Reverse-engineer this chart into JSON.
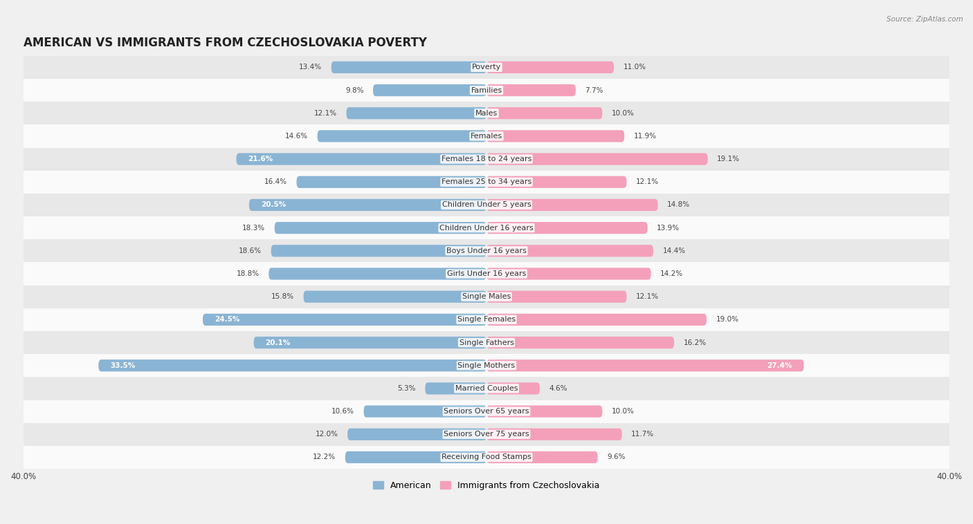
{
  "title": "AMERICAN VS IMMIGRANTS FROM CZECHOSLOVAKIA POVERTY",
  "source": "Source: ZipAtlas.com",
  "categories": [
    "Poverty",
    "Families",
    "Males",
    "Females",
    "Females 18 to 24 years",
    "Females 25 to 34 years",
    "Children Under 5 years",
    "Children Under 16 years",
    "Boys Under 16 years",
    "Girls Under 16 years",
    "Single Males",
    "Single Females",
    "Single Fathers",
    "Single Mothers",
    "Married Couples",
    "Seniors Over 65 years",
    "Seniors Over 75 years",
    "Receiving Food Stamps"
  ],
  "american_values": [
    13.4,
    9.8,
    12.1,
    14.6,
    21.6,
    16.4,
    20.5,
    18.3,
    18.6,
    18.8,
    15.8,
    24.5,
    20.1,
    33.5,
    5.3,
    10.6,
    12.0,
    12.2
  ],
  "immigrant_values": [
    11.0,
    7.7,
    10.0,
    11.9,
    19.1,
    12.1,
    14.8,
    13.9,
    14.4,
    14.2,
    12.1,
    19.0,
    16.2,
    27.4,
    4.6,
    10.0,
    11.7,
    9.6
  ],
  "american_color": "#8AB4D4",
  "immigrant_color": "#F4A0BA",
  "bar_height": 0.52,
  "xlim": 40.0,
  "background_color": "#f0f0f0",
  "row_light_color": "#fafafa",
  "row_dark_color": "#e8e8e8",
  "title_fontsize": 12,
  "label_fontsize": 8,
  "value_fontsize": 7.5,
  "legend_fontsize": 9
}
